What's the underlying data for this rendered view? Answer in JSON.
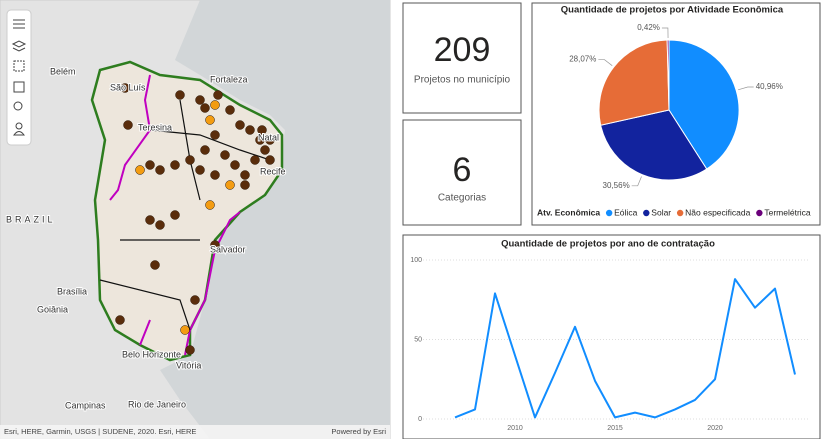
{
  "map": {
    "labels": [
      "Belém",
      "São Luís",
      "Teresina",
      "Fortaleza",
      "Natal",
      "Recife",
      "BRAZIL",
      "Salvador",
      "Brasília",
      "Goiânia",
      "Belo Horizonte",
      "Vitória",
      "Campinas",
      "Rio de Janeiro"
    ],
    "attribution": "Esri, HERE, Garmin, USGS | SUDENE, 2020. Esri, HERE",
    "powered_by": "Powered by Esri"
  },
  "cards": [
    {
      "value": "209",
      "label": "Projetos no município"
    },
    {
      "value": "6",
      "label": "Categorias"
    }
  ],
  "chart_data": [
    {
      "type": "pie",
      "title": "Quantidade de projetos por Atividade Econômica",
      "legend_title": "Atv. Econômica",
      "categories": [
        "Eólica",
        "Solar",
        "Não especificada",
        "Termelétrica"
      ],
      "values": [
        40.96,
        30.56,
        28.07,
        0.42
      ],
      "value_labels": [
        "40,96%",
        "30,56%",
        "28,07%",
        "0,42%"
      ],
      "colors": [
        "#118DFF",
        "#12239E",
        "#E66C37",
        "#6B007B"
      ]
    },
    {
      "type": "line",
      "title": "Quantidade de projetos por ano de contratação",
      "x": [
        2007,
        2008,
        2009,
        2010,
        2011,
        2012,
        2013,
        2014,
        2015,
        2016,
        2017,
        2018,
        2019,
        2020,
        2021,
        2022,
        2023,
        2024
      ],
      "series": [
        {
          "name": "Projetos",
          "color": "#118DFF",
          "values": [
            1,
            6,
            79,
            40,
            1,
            29,
            58,
            24,
            1,
            4,
            1,
            6,
            12,
            25,
            88,
            70,
            82,
            28
          ]
        }
      ],
      "xlim": [
        2005,
        2025
      ],
      "xticks": [
        2010,
        2015,
        2020
      ],
      "ylim": [
        0,
        100
      ],
      "yticks": [
        0,
        50,
        100
      ]
    }
  ]
}
